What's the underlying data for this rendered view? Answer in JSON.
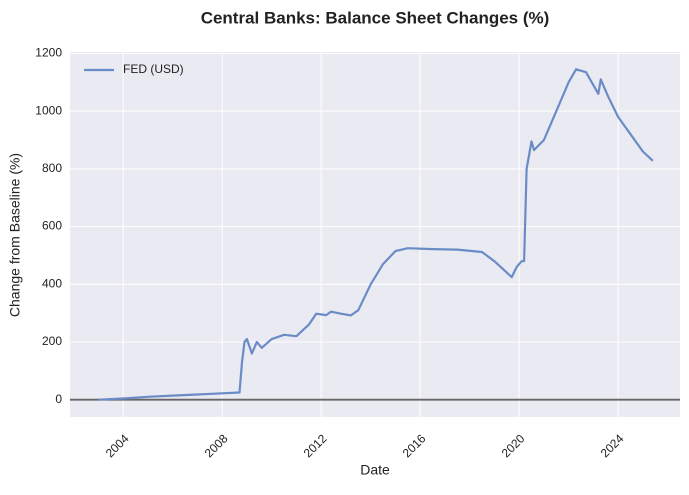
{
  "chart_data": {
    "type": "line",
    "title": "Central Banks: Balance Sheet Changes (%)",
    "xlabel": "Date",
    "ylabel": "Change from Baseline (%)",
    "x": [
      2003.0,
      2004.0,
      2005.0,
      2006.0,
      2007.0,
      2008.0,
      2008.7,
      2008.8,
      2008.9,
      2009.0,
      2009.2,
      2009.4,
      2009.6,
      2010.0,
      2010.5,
      2011.0,
      2011.5,
      2011.8,
      2012.2,
      2012.4,
      2012.8,
      2013.2,
      2013.5,
      2014.0,
      2014.5,
      2015.0,
      2015.5,
      2016.5,
      2017.5,
      2018.5,
      2019.0,
      2019.7,
      2019.9,
      2020.1,
      2020.2,
      2020.3,
      2020.5,
      2020.6,
      2021.0,
      2021.5,
      2022.0,
      2022.3,
      2022.7,
      2023.0,
      2023.2,
      2023.3,
      2023.6,
      2024.0,
      2024.5,
      2025.0,
      2025.4
    ],
    "series": [
      {
        "name": "FED (USD)",
        "color": "#6a8cc6",
        "values": [
          0,
          4,
          10,
          14,
          18,
          22,
          25,
          130,
          200,
          210,
          160,
          200,
          180,
          210,
          225,
          220,
          260,
          298,
          293,
          305,
          298,
          292,
          310,
          400,
          470,
          515,
          525,
          522,
          520,
          512,
          480,
          425,
          460,
          480,
          480,
          800,
          895,
          865,
          900,
          1000,
          1100,
          1145,
          1135,
          1090,
          1060,
          1110,
          1050,
          980,
          920,
          860,
          828
        ]
      }
    ],
    "xlim": [
      2001.85,
      2026.5
    ],
    "xticks": [
      2004,
      2008,
      2012,
      2016,
      2020,
      2024
    ],
    "ylim": [
      -60,
      1205
    ],
    "yticks": [
      0,
      200,
      400,
      600,
      800,
      1000,
      1200
    ],
    "hline": 0,
    "grid": true,
    "legend": "upper-left"
  }
}
